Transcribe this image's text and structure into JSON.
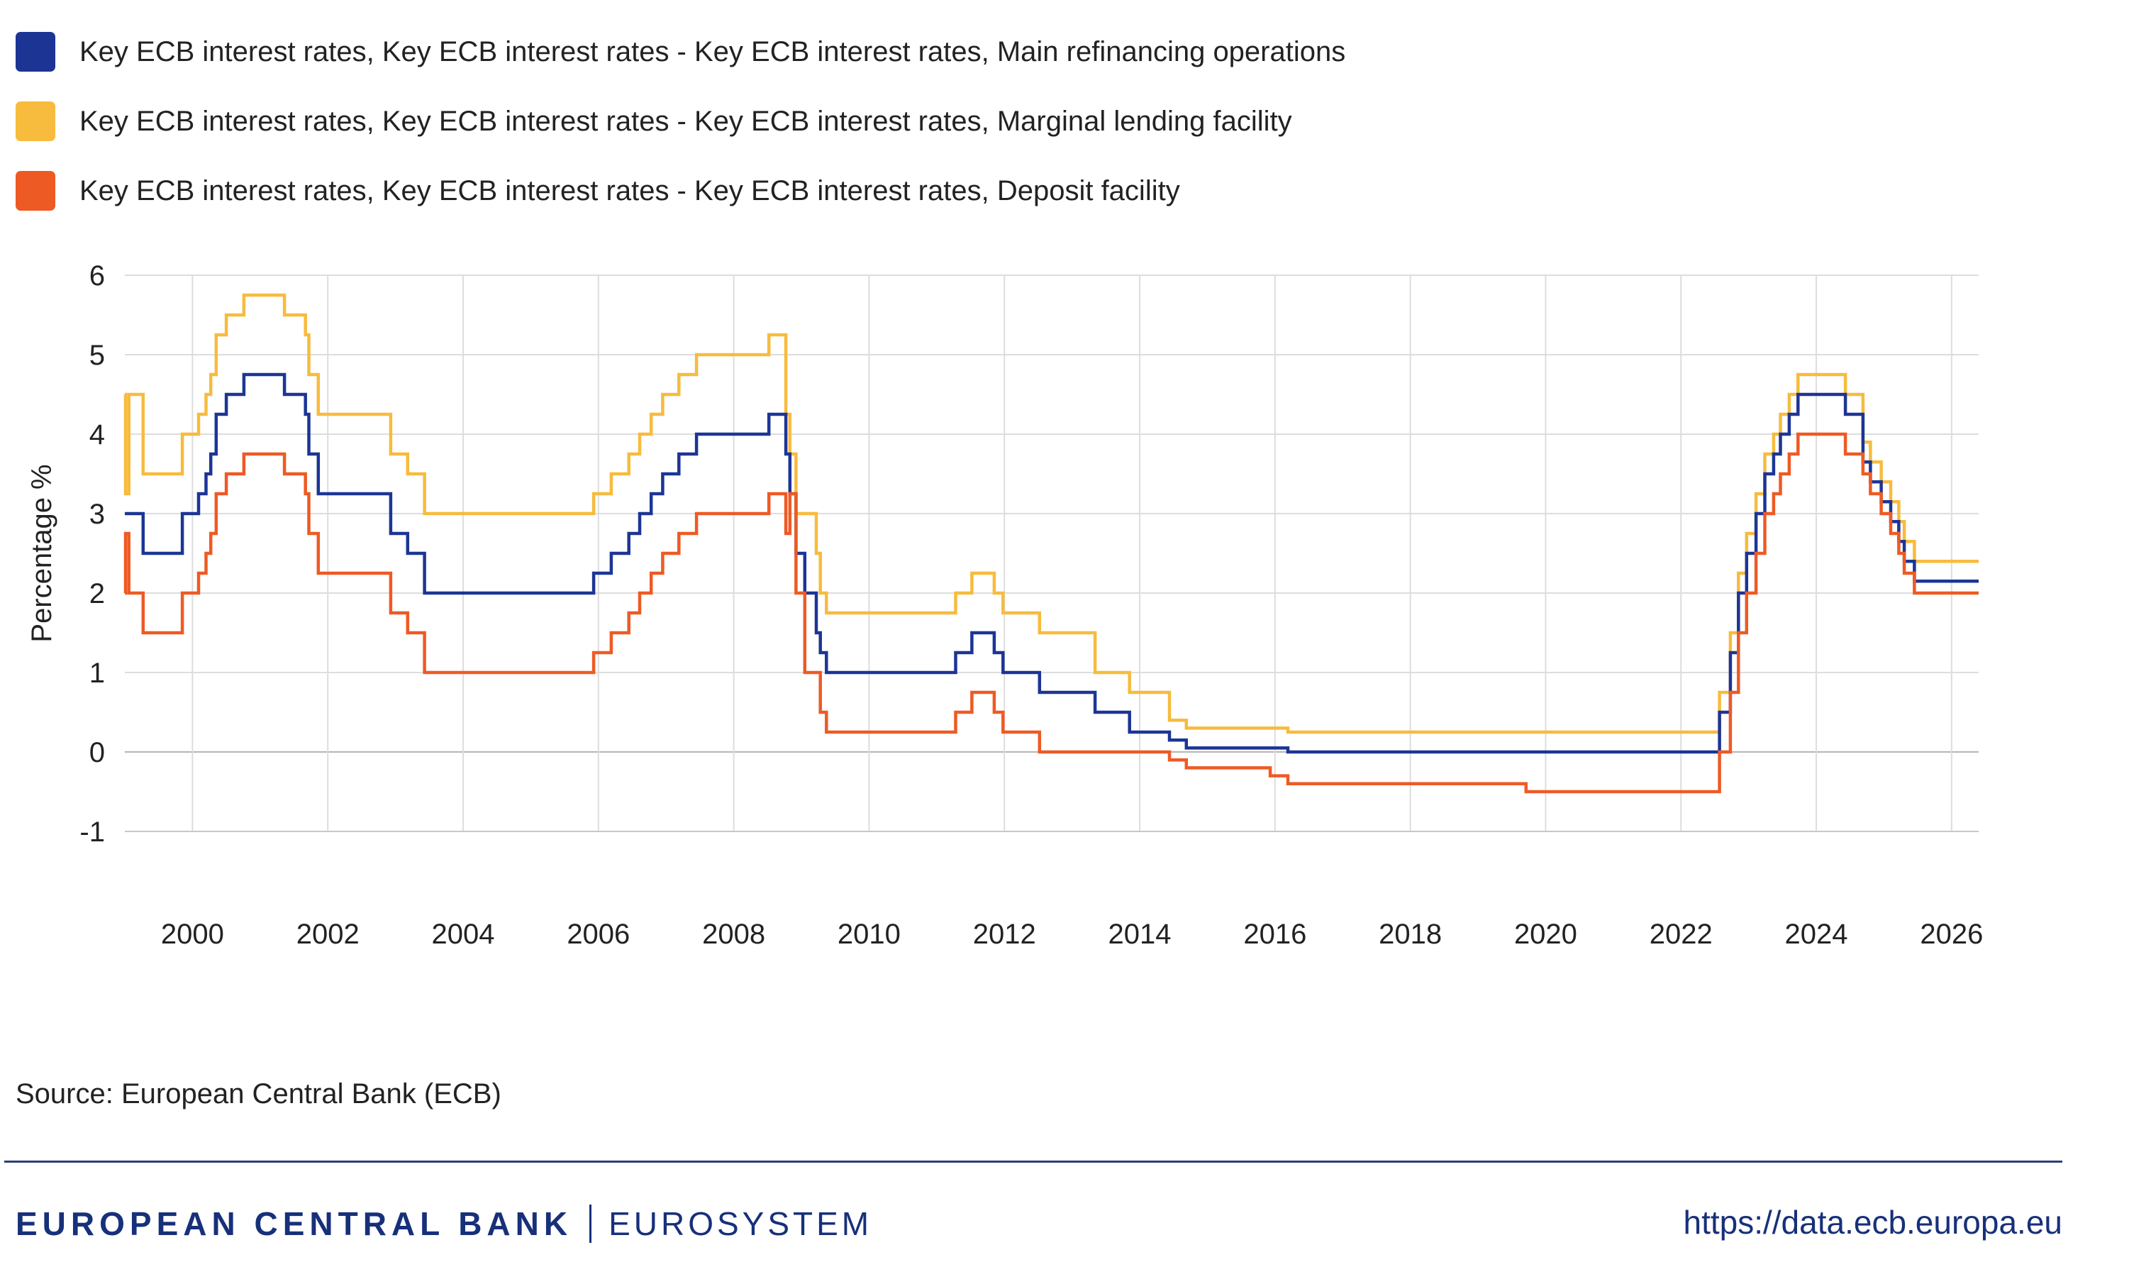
{
  "legend": {
    "items": [
      {
        "label": "Key ECB interest rates, Key ECB interest rates - Key ECB interest rates, Main refinancing operations",
        "color": "#1c3595"
      },
      {
        "label": "Key ECB interest rates, Key ECB interest rates - Key ECB interest rates, Marginal lending facility",
        "color": "#f7bb3d"
      },
      {
        "label": "Key ECB interest rates, Key ECB interest rates - Key ECB interest rates, Deposit facility",
        "color": "#ee5a24"
      }
    ]
  },
  "source": "Source: European Central Bank (ECB)",
  "footer": {
    "bank_name": "EUROPEAN CENTRAL BANK",
    "system_name": "EUROSYSTEM",
    "url": "https://data.ecb.europa.eu"
  },
  "chart_data": {
    "type": "line",
    "title": "",
    "xlabel": "",
    "ylabel": "Percentage %",
    "xlim": [
      1999.0,
      2026.4
    ],
    "ylim": [
      -1,
      6
    ],
    "yticks": [
      -1,
      0,
      1,
      2,
      3,
      4,
      5,
      6
    ],
    "xticks": [
      2000,
      2002,
      2004,
      2006,
      2008,
      2010,
      2012,
      2014,
      2016,
      2018,
      2020,
      2022,
      2024,
      2026
    ],
    "grid": true,
    "legend_position": "top",
    "step": true,
    "series": [
      {
        "name": "Key ECB interest rates, Key ECB interest rates - Key ECB interest rates, Main refinancing operations",
        "color": "#1c3595",
        "x": [
          1999.0,
          1999.27,
          1999.85,
          2000.09,
          2000.2,
          2000.27,
          2000.35,
          2000.46,
          2000.5,
          2000.76,
          2001.36,
          2001.67,
          2001.72,
          2001.86,
          2002.93,
          2003.18,
          2003.43,
          2005.93,
          2006.19,
          2006.45,
          2006.61,
          2006.78,
          2006.95,
          2007.19,
          2007.45,
          2008.52,
          2008.77,
          2008.83,
          2008.92,
          2009.05,
          2009.22,
          2009.28,
          2009.37,
          2011.28,
          2011.52,
          2011.85,
          2011.98,
          2012.52,
          2013.34,
          2013.85,
          2014.44,
          2014.69,
          2016.19,
          2022.57,
          2022.73,
          2022.85,
          2022.97,
          2023.11,
          2023.24,
          2023.37,
          2023.47,
          2023.6,
          2023.73,
          2024.43,
          2024.69,
          2024.8,
          2024.96,
          2025.1,
          2025.22,
          2025.3,
          2025.45,
          2026.4
        ],
        "values": [
          3.0,
          2.5,
          3.0,
          3.25,
          3.5,
          3.75,
          4.25,
          4.25,
          4.5,
          4.75,
          4.5,
          4.25,
          3.75,
          3.25,
          2.75,
          2.5,
          2.0,
          2.25,
          2.5,
          2.75,
          3.0,
          3.25,
          3.5,
          3.75,
          4.0,
          4.25,
          3.75,
          3.25,
          2.5,
          2.0,
          1.5,
          1.25,
          1.0,
          1.25,
          1.5,
          1.25,
          1.0,
          0.75,
          0.5,
          0.25,
          0.15,
          0.05,
          0.0,
          0.5,
          1.25,
          2.0,
          2.5,
          3.0,
          3.5,
          3.75,
          4.0,
          4.25,
          4.5,
          4.25,
          3.65,
          3.4,
          3.15,
          2.9,
          2.65,
          2.4,
          2.15,
          2.15
        ]
      },
      {
        "name": "Key ECB interest rates, Key ECB interest rates - Key ECB interest rates, Marginal lending facility",
        "color": "#f7bb3d",
        "x": [
          1999.0,
          1999.01,
          1999.06,
          1999.27,
          1999.85,
          2000.09,
          2000.2,
          2000.27,
          2000.35,
          2000.46,
          2000.5,
          2000.76,
          2001.36,
          2001.67,
          2001.72,
          2001.86,
          2002.93,
          2003.18,
          2003.43,
          2005.93,
          2006.19,
          2006.45,
          2006.61,
          2006.78,
          2006.95,
          2007.19,
          2007.45,
          2008.52,
          2008.77,
          2008.83,
          2008.92,
          2009.05,
          2009.22,
          2009.28,
          2009.37,
          2011.28,
          2011.52,
          2011.85,
          2011.98,
          2012.52,
          2013.34,
          2013.85,
          2014.44,
          2014.69,
          2016.19,
          2022.57,
          2022.73,
          2022.85,
          2022.97,
          2023.11,
          2023.24,
          2023.37,
          2023.47,
          2023.6,
          2023.73,
          2024.43,
          2024.69,
          2024.8,
          2024.96,
          2025.1,
          2025.22,
          2025.3,
          2025.45,
          2026.4
        ],
        "values": [
          4.5,
          3.25,
          4.5,
          3.5,
          4.0,
          4.25,
          4.5,
          4.75,
          5.25,
          5.25,
          5.5,
          5.75,
          5.5,
          5.25,
          4.75,
          4.25,
          3.75,
          3.5,
          3.0,
          3.25,
          3.5,
          3.75,
          4.0,
          4.25,
          4.5,
          4.75,
          5.0,
          5.25,
          4.25,
          3.75,
          3.0,
          3.0,
          2.5,
          2.0,
          1.75,
          2.0,
          2.25,
          2.0,
          1.75,
          1.5,
          1.0,
          0.75,
          0.4,
          0.3,
          0.25,
          0.75,
          1.5,
          2.25,
          2.75,
          3.25,
          3.75,
          4.0,
          4.25,
          4.5,
          4.75,
          4.5,
          3.9,
          3.65,
          3.4,
          3.15,
          2.9,
          2.65,
          2.4,
          2.4
        ]
      },
      {
        "name": "Key ECB interest rates, Key ECB interest rates - Key ECB interest rates, Deposit facility",
        "color": "#ee5a24",
        "x": [
          1999.0,
          1999.01,
          1999.06,
          1999.27,
          1999.85,
          2000.09,
          2000.2,
          2000.27,
          2000.35,
          2000.46,
          2000.5,
          2000.76,
          2001.36,
          2001.67,
          2001.72,
          2001.86,
          2002.93,
          2003.18,
          2003.43,
          2005.93,
          2006.19,
          2006.45,
          2006.61,
          2006.78,
          2006.95,
          2007.19,
          2007.45,
          2008.52,
          2008.77,
          2008.83,
          2008.92,
          2009.05,
          2009.22,
          2009.28,
          2009.37,
          2011.28,
          2011.52,
          2011.85,
          2011.98,
          2012.52,
          2014.44,
          2014.69,
          2015.93,
          2016.19,
          2019.71,
          2022.57,
          2022.73,
          2022.85,
          2022.97,
          2023.11,
          2023.24,
          2023.37,
          2023.47,
          2023.6,
          2023.73,
          2024.43,
          2024.69,
          2024.8,
          2024.96,
          2025.1,
          2025.22,
          2025.3,
          2025.45,
          2026.4
        ],
        "values": [
          2.0,
          2.75,
          2.0,
          1.5,
          2.0,
          2.25,
          2.5,
          2.75,
          3.25,
          3.25,
          3.5,
          3.75,
          3.5,
          3.25,
          2.75,
          2.25,
          1.75,
          1.5,
          1.0,
          1.25,
          1.5,
          1.75,
          2.0,
          2.25,
          2.5,
          2.75,
          3.0,
          3.25,
          2.75,
          3.25,
          2.0,
          1.0,
          1.0,
          0.5,
          0.25,
          0.5,
          0.75,
          0.5,
          0.25,
          0.0,
          -0.1,
          -0.2,
          -0.3,
          -0.4,
          -0.5,
          0.0,
          0.75,
          1.5,
          2.0,
          2.5,
          3.0,
          3.25,
          3.5,
          3.75,
          4.0,
          3.75,
          3.5,
          3.25,
          3.0,
          2.75,
          2.5,
          2.25,
          2.0,
          2.0
        ]
      }
    ]
  }
}
